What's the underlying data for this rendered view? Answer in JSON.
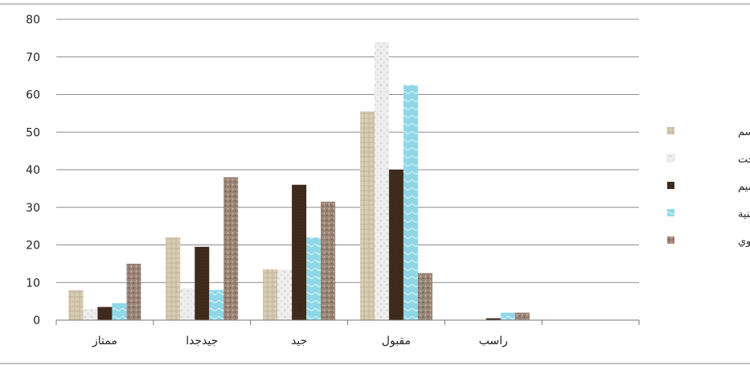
{
  "chart_data": {
    "type": "bar",
    "categories": [
      "ممتاز",
      "جيدجدا",
      "جيد",
      "مقبول",
      "راسب"
    ],
    "series": [
      {
        "name": "الرسم",
        "color": "#d8ccb4",
        "values": [
          8,
          22,
          13.5,
          55.5,
          0
        ]
      },
      {
        "name": "نحت",
        "color": "#ececec",
        "values": [
          3,
          8.5,
          13.5,
          74,
          0
        ]
      },
      {
        "name": "تصميم",
        "color": "#3a2618",
        "values": [
          3.5,
          19.5,
          36,
          40,
          0.5
        ]
      },
      {
        "name": "اشغال فنية",
        "color": "#8fd6e6",
        "values": [
          4.5,
          8,
          22,
          62.5,
          2
        ]
      },
      {
        "name": "نسيج يدوي",
        "color": "#9a8576",
        "values": [
          15,
          38,
          31.5,
          12.5,
          2
        ]
      }
    ],
    "ylim": [
      0,
      80
    ],
    "yticks": [
      0,
      10,
      20,
      30,
      40,
      50,
      60,
      70,
      80
    ],
    "grid": true,
    "legend": "right"
  }
}
